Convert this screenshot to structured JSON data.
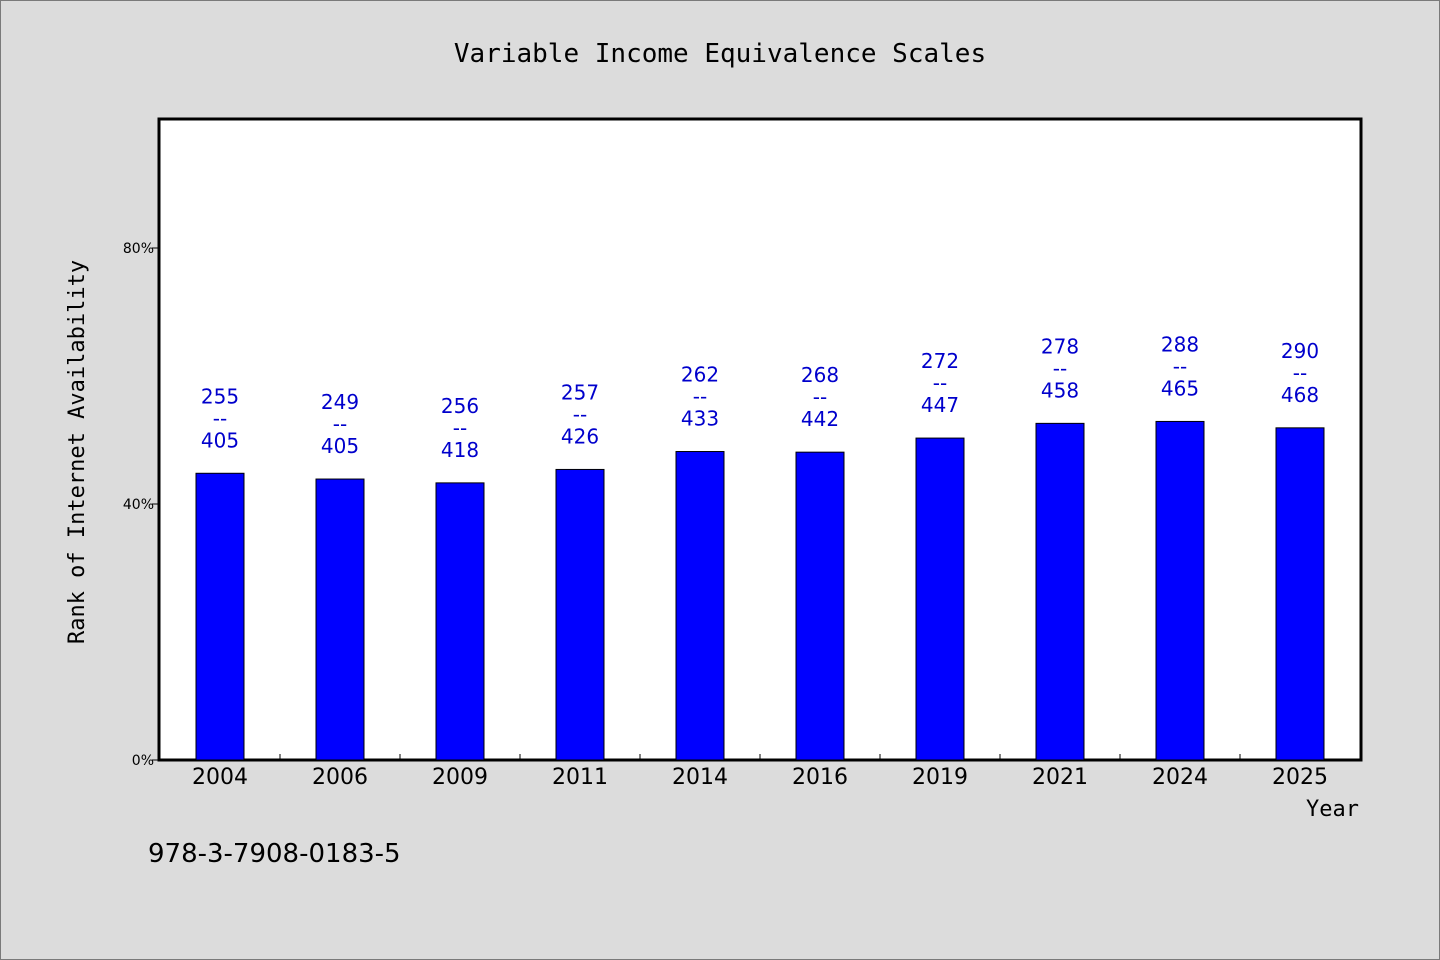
{
  "chart_data": {
    "type": "bar",
    "title": "Variable Income Equivalence Scales",
    "xlabel": "Year",
    "ylabel": "Rank of Internet Availability",
    "categories": [
      "2004",
      "2006",
      "2009",
      "2011",
      "2014",
      "2016",
      "2019",
      "2021",
      "2024",
      "2025"
    ],
    "values": [
      44.8,
      43.9,
      43.3,
      45.4,
      48.2,
      48.1,
      50.3,
      52.6,
      52.9,
      51.9
    ],
    "labels": [
      {
        "top": "255",
        "sep": "--",
        "bottom": "405"
      },
      {
        "top": "249",
        "sep": "--",
        "bottom": "405"
      },
      {
        "top": "256",
        "sep": "--",
        "bottom": "418"
      },
      {
        "top": "257",
        "sep": "--",
        "bottom": "426"
      },
      {
        "top": "262",
        "sep": "--",
        "bottom": "433"
      },
      {
        "top": "268",
        "sep": "--",
        "bottom": "442"
      },
      {
        "top": "272",
        "sep": "--",
        "bottom": "447"
      },
      {
        "top": "278",
        "sep": "--",
        "bottom": "458"
      },
      {
        "top": "288",
        "sep": "--",
        "bottom": "465"
      },
      {
        "top": "290",
        "sep": "--",
        "bottom": "468"
      }
    ],
    "yticks": [
      0,
      40,
      80
    ],
    "ytick_labels": [
      "0%",
      "40%",
      "80%"
    ],
    "ylim": [
      0,
      100
    ],
    "grid": false,
    "bar_color": "#0000ff",
    "label_color": "#0000cc"
  },
  "footnote": "978-3-7908-0183-5"
}
